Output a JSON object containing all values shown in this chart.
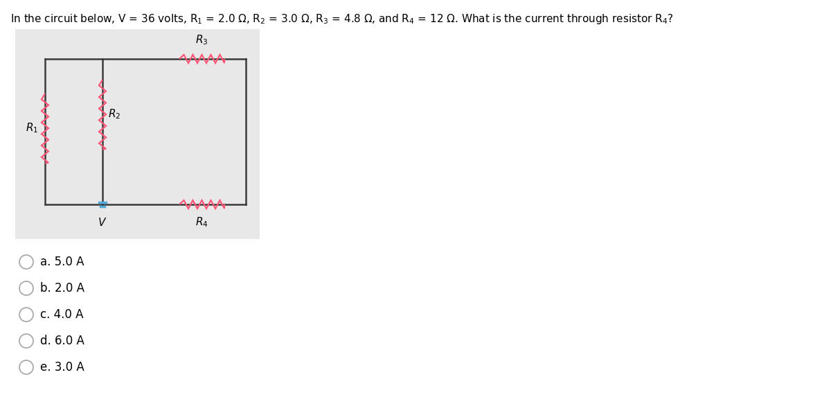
{
  "title_parts": [
    "In the circuit below, V = 36 volts, R",
    "1",
    " = 2.0 Ω, R",
    "2",
    " = 3.0 Ω, R",
    "3",
    " = 4.8 Ω, and R",
    "4",
    " = 12 Ω. What is the current through resistor R",
    "4",
    "?"
  ],
  "bg_color": "#e8e8e8",
  "wire_color": "#3a3a3a",
  "resistor_color": "#ff5577",
  "voltage_color": "#55aadd",
  "choices": [
    "a. 5.0 A",
    "b. 2.0 A",
    "c. 4.0 A",
    "d. 6.0 A",
    "e. 3.0 A"
  ],
  "fig_width": 12.0,
  "fig_height": 5.83
}
